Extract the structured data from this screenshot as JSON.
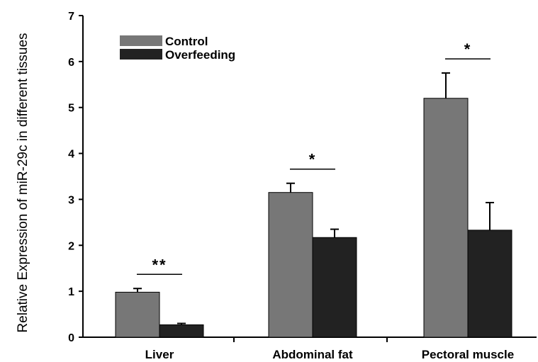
{
  "chart_data": {
    "type": "bar",
    "categories": [
      "Liver",
      "Abdominal fat",
      "Pectoral muscle"
    ],
    "series": [
      {
        "name": "Control",
        "values": [
          0.98,
          3.15,
          5.2
        ],
        "errors": [
          0.08,
          0.2,
          0.55
        ],
        "color": "#777777"
      },
      {
        "name": "Overfeeding",
        "values": [
          0.27,
          2.17,
          2.33
        ],
        "errors": [
          0.03,
          0.18,
          0.6
        ],
        "color": "#222222"
      }
    ],
    "significance": [
      "**",
      "*",
      "*"
    ],
    "title": "",
    "xlabel": "",
    "ylabel": "Relative Expression of miR-29c in different tissues",
    "ylim": [
      0,
      7
    ],
    "yticks": [
      "0",
      "1",
      "2",
      "3",
      "4",
      "5",
      "6",
      "7"
    ],
    "grid": false,
    "legend_position": "top-left"
  }
}
